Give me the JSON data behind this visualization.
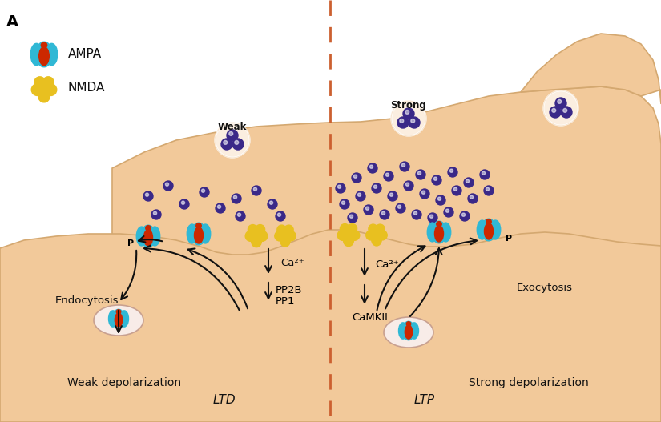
{
  "bg_color": "#ffffff",
  "skin_color": "#f2c99a",
  "skin_edge": "#d4a870",
  "vesicle_color": "#f8ece8",
  "vesicle_border": "#c8a090",
  "ampa_outer": "#30b8d5",
  "ampa_inner": "#cc2800",
  "nmda_color": "#e8c020",
  "dot_color": "#3a2888",
  "dot_white": "#ffffff",
  "dashed_color": "#cc6030",
  "arrow_color": "#111111",
  "text_color": "#111111",
  "title": "A",
  "label_ampa": "AMPA",
  "label_nmda": "NMDA",
  "label_weak": "Weak",
  "label_strong": "Strong",
  "label_endocytosis": "Endocytosis",
  "label_exocytosis": "Exocytosis",
  "label_weak_depol": "Weak depolarization",
  "label_strong_depol": "Strong depolarization",
  "label_ltd": "LTD",
  "label_ltp": "LTP",
  "label_ca_ltd": "Ca²⁺",
  "label_ca_ltp": "Ca²⁺",
  "label_pp2b": "PP2B",
  "label_pp1": "PP1",
  "label_camkii": "CaMKII",
  "label_p_left": "P",
  "label_p_right": "P"
}
